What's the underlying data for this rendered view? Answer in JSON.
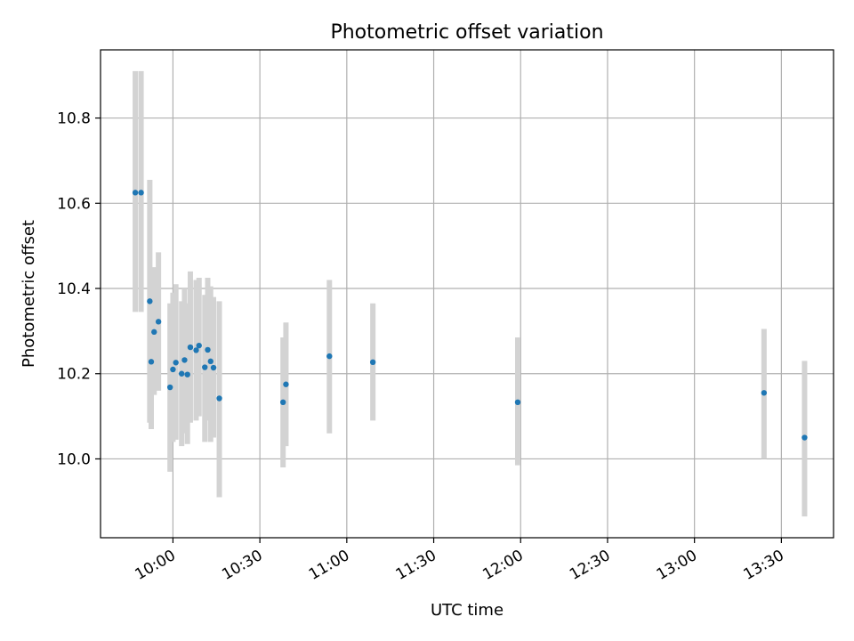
{
  "chart_data": {
    "type": "scatter",
    "title": "Photometric offset variation",
    "xlabel": "UTC time",
    "ylabel": "Photometric offset",
    "grid": true,
    "x_ticks": [
      "10:00",
      "10:30",
      "11:00",
      "11:30",
      "12:00",
      "12:30",
      "13:00",
      "13:30"
    ],
    "y_ticks": [
      "10.0",
      "10.2",
      "10.4",
      "10.6",
      "10.8"
    ],
    "xlim": [
      "09:35",
      "13:48"
    ],
    "ylim": [
      9.815,
      10.96
    ],
    "colors": {
      "points": "#1f77b4",
      "error_bars": "#d3d3d3",
      "grid": "#b0b0b0"
    },
    "points": [
      {
        "x": "09:47",
        "y": 10.625,
        "y_low": 10.345,
        "y_high": 10.91
      },
      {
        "x": "09:49",
        "y": 10.625,
        "y_low": 10.345,
        "y_high": 10.91
      },
      {
        "x": "09:52",
        "y": 10.37,
        "y_low": 10.085,
        "y_high": 10.655
      },
      {
        "x": "09:52.5",
        "y": 10.228,
        "y_low": 10.07,
        "y_high": 10.385
      },
      {
        "x": "09:53.5",
        "y": 10.298,
        "y_low": 10.15,
        "y_high": 10.45
      },
      {
        "x": "09:55",
        "y": 10.322,
        "y_low": 10.16,
        "y_high": 10.485
      },
      {
        "x": "09:59",
        "y": 10.168,
        "y_low": 9.97,
        "y_high": 10.365
      },
      {
        "x": "10:00",
        "y": 10.21,
        "y_low": 10.04,
        "y_high": 10.39
      },
      {
        "x": "10:01",
        "y": 10.226,
        "y_low": 10.045,
        "y_high": 10.41
      },
      {
        "x": "10:03",
        "y": 10.2,
        "y_low": 10.03,
        "y_high": 10.37
      },
      {
        "x": "10:04",
        "y": 10.232,
        "y_low": 10.06,
        "y_high": 10.4
      },
      {
        "x": "10:05",
        "y": 10.198,
        "y_low": 10.035,
        "y_high": 10.365
      },
      {
        "x": "10:06",
        "y": 10.262,
        "y_low": 10.085,
        "y_high": 10.44
      },
      {
        "x": "10:08",
        "y": 10.255,
        "y_low": 10.09,
        "y_high": 10.42
      },
      {
        "x": "10:09",
        "y": 10.266,
        "y_low": 10.1,
        "y_high": 10.425
      },
      {
        "x": "10:11",
        "y": 10.215,
        "y_low": 10.04,
        "y_high": 10.385
      },
      {
        "x": "10:12",
        "y": 10.256,
        "y_low": 10.09,
        "y_high": 10.425
      },
      {
        "x": "10:13",
        "y": 10.229,
        "y_low": 10.04,
        "y_high": 10.405
      },
      {
        "x": "10:14",
        "y": 10.214,
        "y_low": 10.05,
        "y_high": 10.38
      },
      {
        "x": "10:16",
        "y": 10.142,
        "y_low": 9.91,
        "y_high": 10.37
      },
      {
        "x": "10:38",
        "y": 10.133,
        "y_low": 9.98,
        "y_high": 10.285
      },
      {
        "x": "10:39",
        "y": 10.175,
        "y_low": 10.03,
        "y_high": 10.32
      },
      {
        "x": "10:54",
        "y": 10.241,
        "y_low": 10.06,
        "y_high": 10.42
      },
      {
        "x": "11:09",
        "y": 10.227,
        "y_low": 10.09,
        "y_high": 10.365
      },
      {
        "x": "11:59",
        "y": 10.133,
        "y_low": 9.985,
        "y_high": 10.285
      },
      {
        "x": "13:24",
        "y": 10.155,
        "y_low": 10.0,
        "y_high": 10.305
      },
      {
        "x": "13:38",
        "y": 10.05,
        "y_low": 9.865,
        "y_high": 10.23
      }
    ]
  }
}
